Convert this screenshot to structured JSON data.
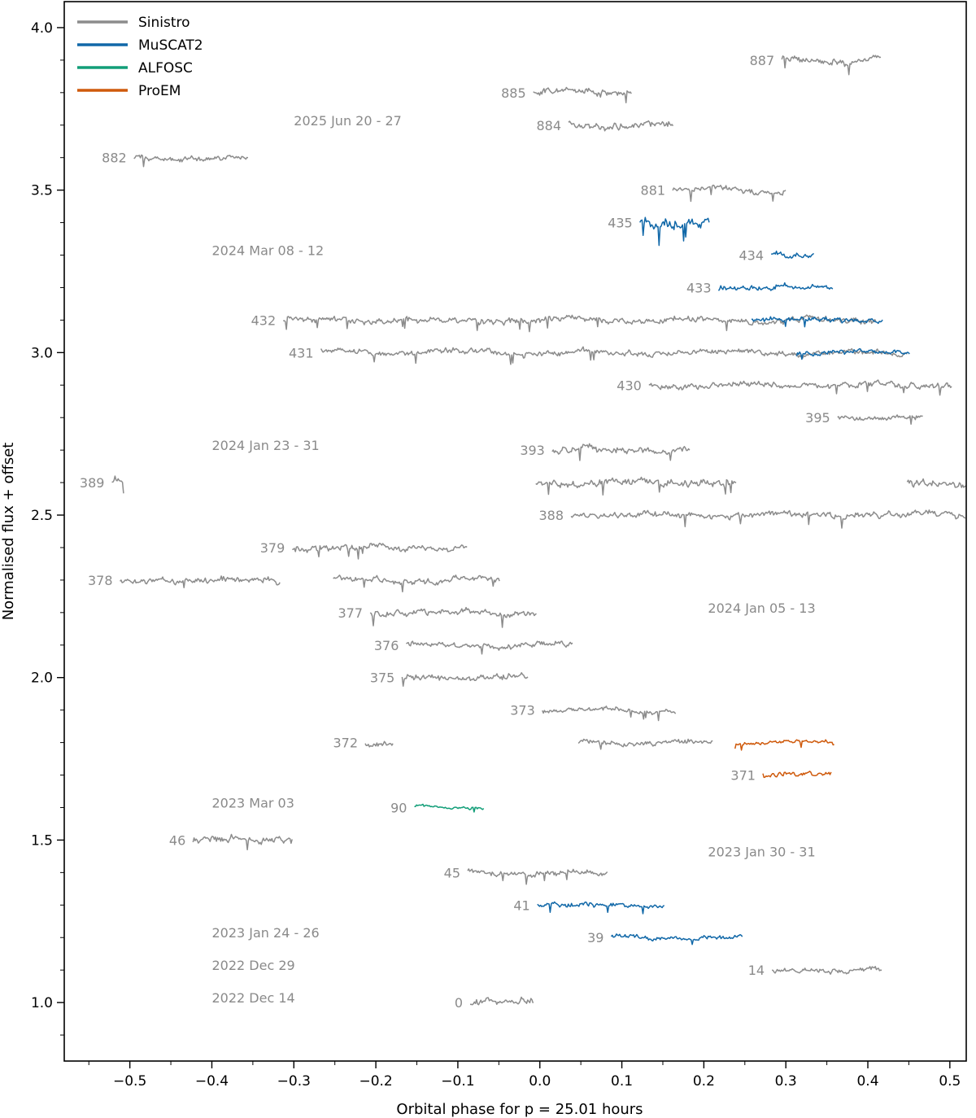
{
  "chart_data": {
    "type": "line",
    "xlabel": "Orbital phase for p = 25.01 hours",
    "ylabel": "Normalised flux + offset",
    "xlim": [
      -0.58,
      0.52
    ],
    "ylim": [
      0.82,
      4.08
    ],
    "x_ticks": [
      -0.5,
      -0.4,
      -0.3,
      -0.2,
      -0.1,
      0.0,
      0.1,
      0.2,
      0.3,
      0.4,
      0.5
    ],
    "x_tick_labels": [
      "−0.5",
      "−0.4",
      "−0.3",
      "−0.2",
      "−0.1",
      "0.0",
      "0.1",
      "0.2",
      "0.3",
      "0.4",
      "0.5"
    ],
    "y_ticks": [
      1.0,
      1.5,
      2.0,
      2.5,
      3.0,
      3.5,
      4.0
    ],
    "y_tick_labels": [
      "1.0",
      "1.5",
      "2.0",
      "2.5",
      "3.0",
      "3.5",
      "4.0"
    ],
    "colors": {
      "Sinistro": "#8c8c8c",
      "MuSCAT2": "#1168a8",
      "ALFOSC": "#129e78",
      "ProEM": "#cf5a0c"
    },
    "legend": [
      {
        "name": "Sinistro",
        "color": "#8c8c8c"
      },
      {
        "name": "MuSCAT2",
        "color": "#1168a8"
      },
      {
        "name": "ALFOSC",
        "color": "#129e78"
      },
      {
        "name": "ProEM",
        "color": "#cf5a0c"
      }
    ],
    "group_labels": [
      {
        "text": "2025 Jun 20 - 27",
        "x": -0.3,
        "y": 3.715
      },
      {
        "text": "2024 Mar 08 - 12",
        "x": -0.4,
        "y": 3.315
      },
      {
        "text": "2024 Jan 23 - 31",
        "x": -0.4,
        "y": 2.715
      },
      {
        "text": "2024 Jan 05 - 13",
        "x": 0.205,
        "y": 2.215
      },
      {
        "text": "2023 Mar 03",
        "x": -0.4,
        "y": 1.615
      },
      {
        "text": "2023 Jan 30 - 31",
        "x": 0.205,
        "y": 1.465
      },
      {
        "text": "2023 Jan 24 - 26",
        "x": -0.4,
        "y": 1.215
      },
      {
        "text": "2022 Dec 29",
        "x": -0.4,
        "y": 1.115
      },
      {
        "text": "2022 Dec 14",
        "x": -0.4,
        "y": 1.015
      }
    ],
    "series": [
      {
        "id": "887",
        "label": "887",
        "instrument": "Sinistro",
        "offset": 3.9,
        "segments": [
          [
            0.295,
            0.416
          ]
        ],
        "noise": 0.012,
        "amp": 0.02
      },
      {
        "id": "885",
        "label": "885",
        "instrument": "Sinistro",
        "offset": 3.8,
        "segments": [
          [
            -0.008,
            0.112
          ]
        ],
        "noise": 0.012,
        "amp": 0.01
      },
      {
        "id": "884",
        "label": "884",
        "instrument": "Sinistro",
        "offset": 3.7,
        "segments": [
          [
            0.035,
            0.163
          ]
        ],
        "noise": 0.012,
        "amp": 0.01
      },
      {
        "id": "882",
        "label": "882",
        "instrument": "Sinistro",
        "offset": 3.6,
        "segments": [
          [
            -0.495,
            -0.355
          ]
        ],
        "noise": 0.01,
        "amp": 0.01
      },
      {
        "id": "881",
        "label": "881",
        "instrument": "Sinistro",
        "offset": 3.5,
        "segments": [
          [
            0.162,
            0.301
          ]
        ],
        "noise": 0.01,
        "amp": 0.01
      },
      {
        "id": "435",
        "label": "435",
        "instrument": "MuSCAT2",
        "offset": 3.4,
        "segments": [
          [
            0.122,
            0.207
          ]
        ],
        "noise": 0.02,
        "amp": 0.015
      },
      {
        "id": "434",
        "label": "434",
        "instrument": "MuSCAT2",
        "offset": 3.3,
        "segments": [
          [
            0.282,
            0.334
          ]
        ],
        "noise": 0.01,
        "amp": 0.005
      },
      {
        "id": "433",
        "label": "433",
        "instrument": "MuSCAT2",
        "offset": 3.2,
        "segments": [
          [
            0.218,
            0.358
          ]
        ],
        "noise": 0.01,
        "amp": 0.01
      },
      {
        "id": "432",
        "label": "432",
        "instrument": "Sinistro",
        "offset": 3.1,
        "segments": [
          [
            -0.313,
            0.41
          ]
        ],
        "noise": 0.011,
        "amp": 0.01
      },
      {
        "id": "432b",
        "label": "",
        "instrument": "MuSCAT2",
        "offset": 3.1,
        "segments": [
          [
            0.258,
            0.418
          ]
        ],
        "noise": 0.009,
        "amp": 0.008
      },
      {
        "id": "431",
        "label": "431",
        "instrument": "Sinistro",
        "offset": 3.0,
        "segments": [
          [
            -0.267,
            0.448
          ]
        ],
        "noise": 0.01,
        "amp": 0.01
      },
      {
        "id": "431b",
        "label": "",
        "instrument": "MuSCAT2",
        "offset": 3.0,
        "segments": [
          [
            0.313,
            0.451
          ]
        ],
        "noise": 0.009,
        "amp": 0.008
      },
      {
        "id": "430",
        "label": "430",
        "instrument": "Sinistro",
        "offset": 2.9,
        "segments": [
          [
            0.133,
            0.503
          ]
        ],
        "noise": 0.01,
        "amp": 0.01
      },
      {
        "id": "395",
        "label": "395",
        "instrument": "Sinistro",
        "offset": 2.8,
        "segments": [
          [
            0.363,
            0.467
          ]
        ],
        "noise": 0.009,
        "amp": 0.005
      },
      {
        "id": "393",
        "label": "393",
        "instrument": "Sinistro",
        "offset": 2.7,
        "segments": [
          [
            0.015,
            0.183
          ]
        ],
        "noise": 0.013,
        "amp": 0.01
      },
      {
        "id": "389",
        "label": "389",
        "instrument": "Sinistro",
        "offset": 2.6,
        "segments": [
          [
            -0.522,
            -0.507
          ],
          [
            -0.005,
            0.24
          ],
          [
            0.448,
            0.52
          ]
        ],
        "noise": 0.013,
        "amp": 0.01
      },
      {
        "id": "388",
        "label": "388",
        "instrument": "Sinistro",
        "offset": 2.5,
        "segments": [
          [
            0.038,
            0.52
          ]
        ],
        "noise": 0.011,
        "amp": 0.008
      },
      {
        "id": "379",
        "label": "379",
        "instrument": "Sinistro",
        "offset": 2.4,
        "segments": [
          [
            -0.302,
            -0.088
          ]
        ],
        "noise": 0.011,
        "amp": 0.01
      },
      {
        "id": "378",
        "label": "378",
        "instrument": "Sinistro",
        "offset": 2.3,
        "segments": [
          [
            -0.512,
            -0.316
          ],
          [
            -0.252,
            -0.048
          ]
        ],
        "noise": 0.011,
        "amp": 0.01
      },
      {
        "id": "377",
        "label": "377",
        "instrument": "Sinistro",
        "offset": 2.2,
        "segments": [
          [
            -0.207,
            -0.003
          ]
        ],
        "noise": 0.012,
        "amp": 0.01
      },
      {
        "id": "376",
        "label": "376",
        "instrument": "Sinistro",
        "offset": 2.1,
        "segments": [
          [
            -0.163,
            0.04
          ]
        ],
        "noise": 0.01,
        "amp": 0.01
      },
      {
        "id": "375",
        "label": "375",
        "instrument": "Sinistro",
        "offset": 2.0,
        "segments": [
          [
            -0.168,
            -0.014
          ]
        ],
        "noise": 0.011,
        "amp": 0.01
      },
      {
        "id": "373",
        "label": "373",
        "instrument": "Sinistro",
        "offset": 1.9,
        "segments": [
          [
            0.003,
            0.166
          ]
        ],
        "noise": 0.008,
        "amp": 0.006
      },
      {
        "id": "372",
        "label": "372",
        "instrument": "Sinistro",
        "offset": 1.8,
        "segments": [
          [
            -0.213,
            -0.178
          ],
          [
            0.047,
            0.212
          ]
        ],
        "noise": 0.009,
        "amp": 0.008
      },
      {
        "id": "372b",
        "label": "",
        "instrument": "ProEM",
        "offset": 1.8,
        "segments": [
          [
            0.238,
            0.36
          ]
        ],
        "noise": 0.007,
        "amp": 0.006
      },
      {
        "id": "371",
        "label": "371",
        "instrument": "ProEM",
        "offset": 1.7,
        "segments": [
          [
            0.272,
            0.356
          ]
        ],
        "noise": 0.01,
        "amp": 0.008
      },
      {
        "id": "90",
        "label": "90",
        "instrument": "ALFOSC",
        "offset": 1.6,
        "segments": [
          [
            -0.153,
            -0.068
          ]
        ],
        "noise": 0.005,
        "amp": 0.01
      },
      {
        "id": "46",
        "label": "46",
        "instrument": "Sinistro",
        "offset": 1.5,
        "segments": [
          [
            -0.423,
            -0.302
          ]
        ],
        "noise": 0.012,
        "amp": 0.01
      },
      {
        "id": "45",
        "label": "45",
        "instrument": "Sinistro",
        "offset": 1.4,
        "segments": [
          [
            -0.088,
            0.083
          ]
        ],
        "noise": 0.01,
        "amp": 0.008
      },
      {
        "id": "41",
        "label": "41",
        "instrument": "MuSCAT2",
        "offset": 1.3,
        "segments": [
          [
            -0.003,
            0.152
          ]
        ],
        "noise": 0.008,
        "amp": 0.008
      },
      {
        "id": "39",
        "label": "39",
        "instrument": "MuSCAT2",
        "offset": 1.2,
        "segments": [
          [
            0.087,
            0.247
          ]
        ],
        "noise": 0.008,
        "amp": 0.006
      },
      {
        "id": "14",
        "label": "14",
        "instrument": "Sinistro",
        "offset": 1.1,
        "segments": [
          [
            0.283,
            0.418
          ]
        ],
        "noise": 0.009,
        "amp": 0.006
      },
      {
        "id": "0",
        "label": "0",
        "instrument": "Sinistro",
        "offset": 1.0,
        "segments": [
          [
            -0.085,
            -0.008
          ]
        ],
        "noise": 0.013,
        "amp": 0.01
      }
    ]
  }
}
